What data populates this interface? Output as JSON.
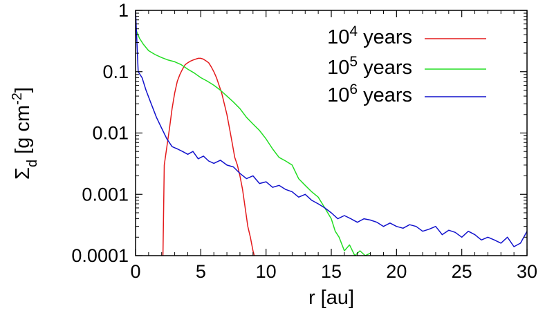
{
  "chart_data": {
    "type": "line",
    "xlabel": "r [au]",
    "ylabel": {
      "symbol": "Σ",
      "sub": "d",
      "units": " [g cm",
      "units_exp": "-2",
      "units_close": "]"
    },
    "x_scale": "linear",
    "y_scale": "log",
    "xlim": [
      0,
      30
    ],
    "ylim": [
      0.0001,
      1
    ],
    "x_ticks": [
      0,
      5,
      10,
      15,
      20,
      25,
      30
    ],
    "x_tick_labels": [
      "0",
      "5",
      "10",
      "15",
      "20",
      "25",
      "30"
    ],
    "y_ticks": [
      0.0001,
      0.001,
      0.01,
      0.1,
      1
    ],
    "y_tick_labels": [
      "0.0001",
      "0.001",
      "0.01",
      "0.1",
      "1"
    ],
    "grid": false,
    "legend_position": "top-right",
    "series": [
      {
        "name": "10^4 years",
        "label_base": "10",
        "label_exp": "4",
        "label_rest": " years",
        "color": "#e41a1c",
        "x": [
          2.1,
          2.2,
          2.4,
          2.6,
          2.8,
          3.0,
          3.2,
          3.4,
          3.6,
          3.8,
          4.0,
          4.2,
          4.4,
          4.6,
          4.8,
          5.0,
          5.2,
          5.4,
          5.6,
          5.8,
          6.0,
          6.2,
          6.4,
          6.6,
          6.8,
          7.0,
          7.2,
          7.4,
          7.6,
          7.8,
          8.0,
          8.2,
          8.4,
          8.6,
          8.8,
          9.0,
          9.1
        ],
        "y": [
          0.0001,
          0.003,
          0.006,
          0.012,
          0.025,
          0.045,
          0.07,
          0.09,
          0.11,
          0.13,
          0.14,
          0.148,
          0.155,
          0.16,
          0.165,
          0.165,
          0.16,
          0.15,
          0.14,
          0.12,
          0.1,
          0.08,
          0.06,
          0.045,
          0.03,
          0.02,
          0.012,
          0.007,
          0.004,
          0.003,
          0.002,
          0.0012,
          0.0006,
          0.0003,
          0.0002,
          0.00012,
          0.0001
        ]
      },
      {
        "name": "10^5 years",
        "label_base": "10",
        "label_exp": "5",
        "label_rest": " years",
        "color": "#22dd22",
        "x": [
          0.0,
          0.3,
          0.6,
          1.0,
          1.5,
          2.0,
          2.5,
          3.0,
          3.5,
          4.0,
          4.5,
          5.0,
          5.5,
          6.0,
          6.5,
          7.0,
          7.5,
          8.0,
          8.5,
          9.0,
          9.5,
          10.0,
          10.5,
          11.0,
          11.5,
          12.0,
          12.5,
          13.0,
          13.5,
          14.0,
          14.5,
          15.0,
          15.3,
          15.6,
          16.0,
          16.4,
          16.8,
          17.2,
          17.6,
          18.0
        ],
        "y": [
          0.5,
          0.35,
          0.28,
          0.22,
          0.19,
          0.17,
          0.155,
          0.145,
          0.13,
          0.11,
          0.095,
          0.08,
          0.07,
          0.06,
          0.05,
          0.04,
          0.032,
          0.025,
          0.018,
          0.014,
          0.011,
          0.008,
          0.0055,
          0.004,
          0.0035,
          0.003,
          0.0018,
          0.0014,
          0.0011,
          0.0009,
          0.0006,
          0.0004,
          0.00025,
          0.0002,
          0.00012,
          0.00015,
          0.0001,
          0.00012,
          0.0001,
          0.00011
        ]
      },
      {
        "name": "10^6 years",
        "label_base": "10",
        "label_exp": "6",
        "label_rest": " years",
        "color": "#1111cc",
        "x": [
          0.0,
          0.2,
          0.5,
          0.8,
          1.2,
          1.6,
          2.0,
          2.4,
          2.8,
          3.2,
          3.6,
          4.0,
          4.4,
          4.8,
          5.2,
          5.6,
          6.0,
          6.5,
          7.0,
          7.5,
          8.0,
          8.5,
          9.0,
          9.5,
          10.0,
          10.5,
          11.0,
          11.5,
          12.0,
          12.5,
          13.0,
          13.5,
          14.0,
          14.5,
          15.0,
          15.5,
          16.0,
          16.5,
          17.0,
          17.5,
          18.0,
          18.5,
          19.0,
          19.5,
          20.0,
          20.5,
          21.0,
          21.5,
          22.0,
          22.5,
          23.0,
          23.5,
          24.0,
          24.5,
          25.0,
          25.5,
          26.0,
          26.5,
          27.0,
          27.5,
          28.0,
          28.5,
          29.0,
          29.5,
          30.0
        ],
        "y": [
          1.0,
          0.1,
          0.08,
          0.05,
          0.03,
          0.018,
          0.012,
          0.008,
          0.006,
          0.0055,
          0.005,
          0.0045,
          0.005,
          0.0038,
          0.0042,
          0.0035,
          0.0032,
          0.0036,
          0.003,
          0.0028,
          0.0022,
          0.0018,
          0.002,
          0.0015,
          0.0016,
          0.0013,
          0.0014,
          0.0012,
          0.0011,
          0.0009,
          0.001,
          0.0008,
          0.0007,
          0.0006,
          0.0005,
          0.0004,
          0.00045,
          0.0004,
          0.00035,
          0.0004,
          0.00038,
          0.00035,
          0.0003,
          0.00034,
          0.0003,
          0.00028,
          0.00032,
          0.0003,
          0.00025,
          0.00027,
          0.0003,
          0.00022,
          0.00026,
          0.00024,
          0.0002,
          0.00025,
          0.00022,
          0.00018,
          0.0002,
          0.00018,
          0.00016,
          0.0002,
          0.00014,
          0.00016,
          0.00025
        ]
      }
    ]
  }
}
